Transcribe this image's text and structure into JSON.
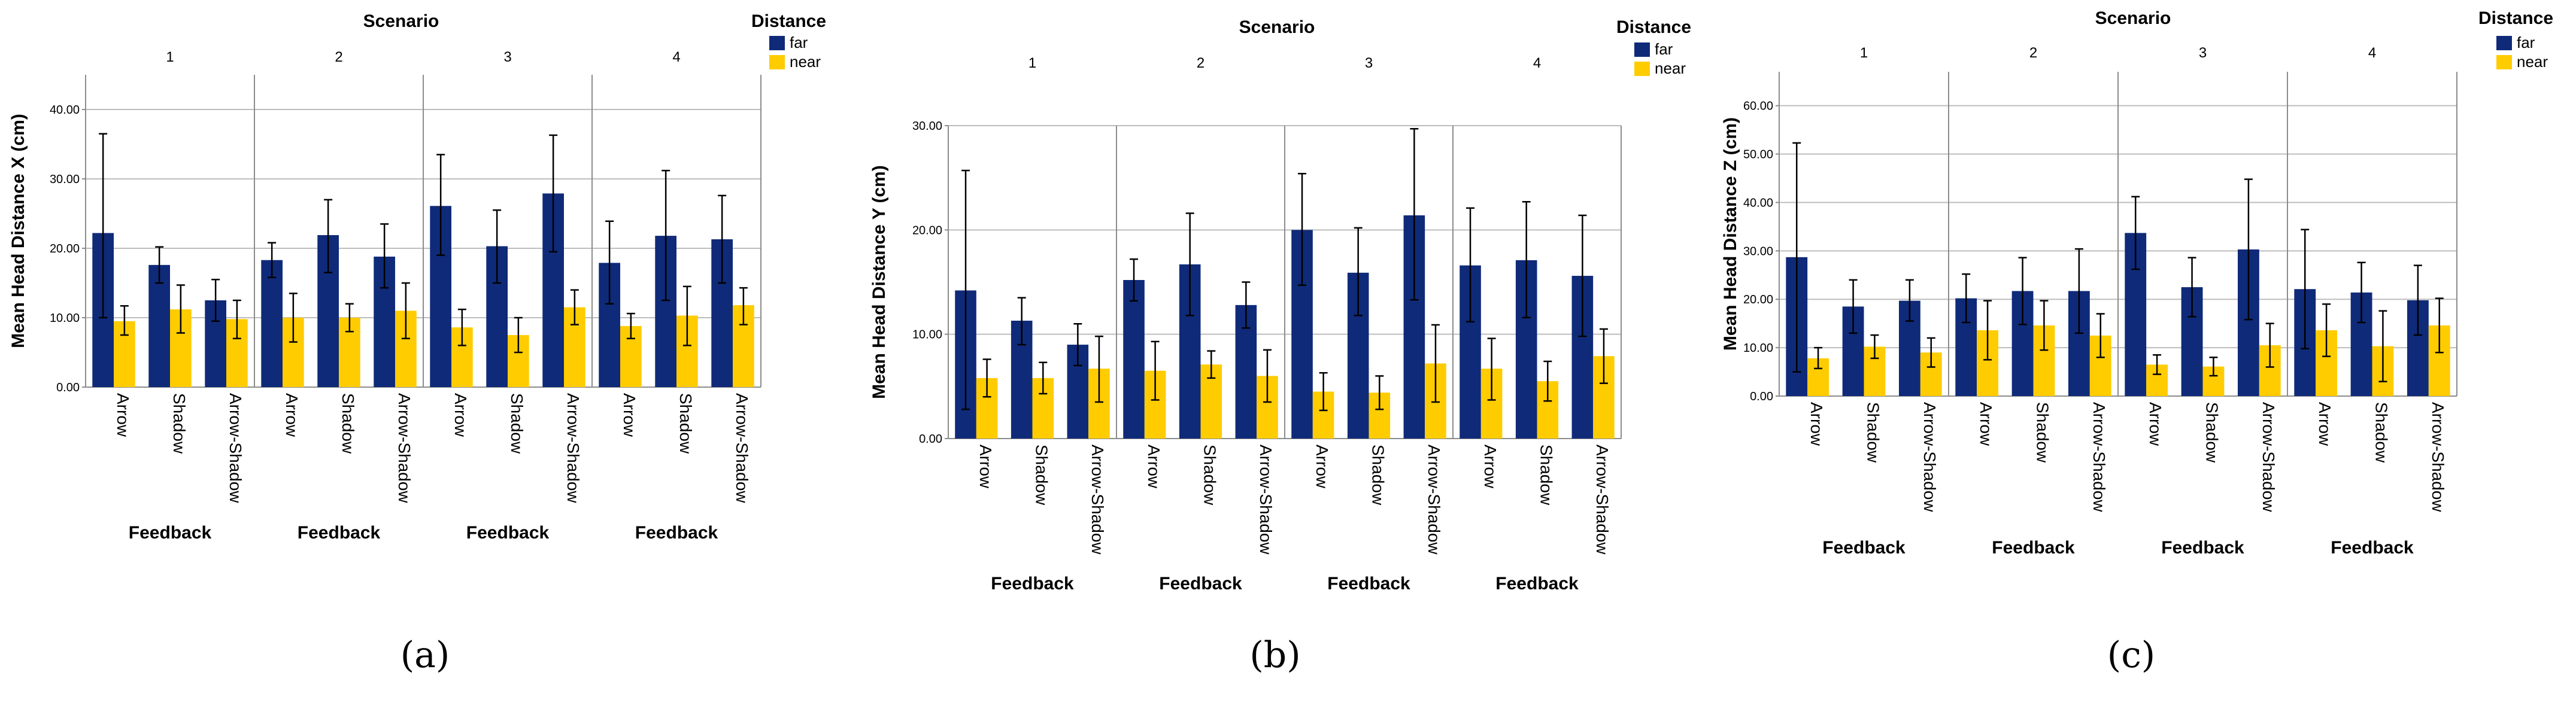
{
  "figure": {
    "captions": [
      "(a)",
      "(b)",
      "(c)"
    ]
  },
  "charts": [
    {
      "type": "bar",
      "title": "Scenario",
      "ylabel": "Mean Head Distance X (cm)",
      "xlabel": "Feedback",
      "legend_title": "Distance",
      "legend": [
        "far",
        "near"
      ],
      "ylim": [
        0,
        45
      ],
      "yticks": [
        "0.00",
        "10.00",
        "20.00",
        "30.00",
        "40.00"
      ],
      "ytick_values": [
        0,
        10,
        20,
        30,
        40
      ],
      "panels": [
        {
          "scenario": "1",
          "far": [
            22.2,
            17.6,
            12.5
          ],
          "far_err": [
            [
              10.0,
              36.5
            ],
            [
              15.0,
              20.2
            ],
            [
              9.5,
              15.5
            ]
          ],
          "near": [
            9.5,
            11.2,
            9.8
          ],
          "near_err": [
            [
              7.5,
              11.7
            ],
            [
              7.8,
              14.7
            ],
            [
              7.0,
              12.5
            ]
          ]
        },
        {
          "scenario": "2",
          "far": [
            18.3,
            21.9,
            18.8
          ],
          "far_err": [
            [
              15.8,
              20.8
            ],
            [
              16.5,
              27.0
            ],
            [
              14.3,
              23.5
            ]
          ],
          "near": [
            10.0,
            10.0,
            11.0
          ],
          "near_err": [
            [
              6.5,
              13.5
            ],
            [
              8.0,
              12.0
            ],
            [
              7.0,
              15.0
            ]
          ]
        },
        {
          "scenario": "3",
          "far": [
            26.1,
            20.3,
            27.9
          ],
          "far_err": [
            [
              19.0,
              33.5
            ],
            [
              15.0,
              25.5
            ],
            [
              19.5,
              36.3
            ]
          ],
          "near": [
            8.6,
            7.5,
            11.5
          ],
          "near_err": [
            [
              6.0,
              11.2
            ],
            [
              5.0,
              10.0
            ],
            [
              9.0,
              14.0
            ]
          ]
        },
        {
          "scenario": "4",
          "far": [
            17.9,
            21.8,
            21.3
          ],
          "far_err": [
            [
              12.0,
              23.9
            ],
            [
              12.5,
              31.2
            ],
            [
              15.0,
              27.6
            ]
          ],
          "near": [
            8.8,
            10.3,
            11.8
          ],
          "near_err": [
            [
              7.0,
              10.6
            ],
            [
              6.0,
              14.5
            ],
            [
              9.0,
              14.3
            ]
          ]
        }
      ],
      "categories": [
        "Arrow",
        "Shadow",
        "Arrow-Shadow"
      ]
    },
    {
      "type": "bar",
      "title": "Scenario",
      "ylabel": "Mean Head Distance Y (cm)",
      "xlabel": "Feedback",
      "legend_title": "Distance",
      "legend": [
        "far",
        "near"
      ],
      "ylim": [
        0,
        30
      ],
      "yticks": [
        "0.00",
        "10.00",
        "20.00",
        "30.00"
      ],
      "ytick_values": [
        0,
        10,
        20,
        30
      ],
      "panels": [
        {
          "scenario": "1",
          "far": [
            14.2,
            11.3,
            9.0
          ],
          "far_err": [
            [
              2.8,
              25.7
            ],
            [
              9.0,
              13.5
            ],
            [
              7.0,
              11.0
            ]
          ],
          "near": [
            5.8,
            5.8,
            6.7
          ],
          "near_err": [
            [
              4.0,
              7.6
            ],
            [
              4.3,
              7.3
            ],
            [
              3.5,
              9.8
            ]
          ]
        },
        {
          "scenario": "2",
          "far": [
            15.2,
            16.7,
            12.8
          ],
          "far_err": [
            [
              13.2,
              17.2
            ],
            [
              11.8,
              21.6
            ],
            [
              10.6,
              15.0
            ]
          ],
          "near": [
            6.5,
            7.1,
            6.0
          ],
          "near_err": [
            [
              3.7,
              9.3
            ],
            [
              5.8,
              8.4
            ],
            [
              3.5,
              8.5
            ]
          ]
        },
        {
          "scenario": "3",
          "far": [
            20.0,
            15.9,
            21.4
          ],
          "far_err": [
            [
              14.7,
              25.4
            ],
            [
              11.8,
              20.2
            ],
            [
              13.3,
              29.7
            ]
          ],
          "near": [
            4.5,
            4.4,
            7.2
          ],
          "near_err": [
            [
              2.7,
              6.3
            ],
            [
              2.8,
              6.0
            ],
            [
              3.5,
              10.9
            ]
          ]
        },
        {
          "scenario": "4",
          "far": [
            16.6,
            17.1,
            15.6
          ],
          "far_err": [
            [
              11.2,
              22.1
            ],
            [
              11.6,
              22.7
            ],
            [
              9.8,
              21.4
            ]
          ],
          "near": [
            6.7,
            5.5,
            7.9
          ],
          "near_err": [
            [
              3.7,
              9.6
            ],
            [
              3.6,
              7.4
            ],
            [
              5.3,
              10.5
            ]
          ]
        }
      ],
      "categories": [
        "Arrow",
        "Shadow",
        "Arrow-Shadow"
      ]
    },
    {
      "type": "bar",
      "title": "Scenario",
      "ylabel": "Mean Head Distance Z (cm)",
      "xlabel": "Feedback",
      "legend_title": "Distance",
      "legend": [
        "far",
        "near"
      ],
      "ylim": [
        0,
        67
      ],
      "yticks": [
        "0.00",
        "10.00",
        "20.00",
        "30.00",
        "40.00",
        "50.00",
        "60.00"
      ],
      "ytick_values": [
        0,
        10,
        20,
        30,
        40,
        50,
        60
      ],
      "panels": [
        {
          "scenario": "1",
          "far": [
            28.7,
            18.5,
            19.7
          ],
          "far_err": [
            [
              5.0,
              52.3
            ],
            [
              13.0,
              24.0
            ],
            [
              15.5,
              24.0
            ]
          ],
          "near": [
            7.8,
            10.2,
            9.0
          ],
          "near_err": [
            [
              5.7,
              10.0
            ],
            [
              7.8,
              12.6
            ],
            [
              6.0,
              12.0
            ]
          ]
        },
        {
          "scenario": "2",
          "far": [
            20.2,
            21.7,
            21.7
          ],
          "far_err": [
            [
              15.2,
              25.2
            ],
            [
              14.8,
              28.6
            ],
            [
              13.0,
              30.4
            ]
          ],
          "near": [
            13.6,
            14.6,
            12.5
          ],
          "near_err": [
            [
              7.5,
              19.7
            ],
            [
              9.5,
              19.7
            ],
            [
              8.0,
              17.0
            ]
          ]
        },
        {
          "scenario": "3",
          "far": [
            33.7,
            22.5,
            30.3
          ],
          "far_err": [
            [
              26.2,
              41.2
            ],
            [
              16.4,
              28.6
            ],
            [
              15.8,
              44.8
            ]
          ],
          "near": [
            6.5,
            6.1,
            10.5
          ],
          "near_err": [
            [
              4.5,
              8.5
            ],
            [
              4.2,
              8.0
            ],
            [
              6.0,
              15.0
            ]
          ]
        },
        {
          "scenario": "4",
          "far": [
            22.1,
            21.4,
            19.8
          ],
          "far_err": [
            [
              9.8,
              34.4
            ],
            [
              15.2,
              27.6
            ],
            [
              12.6,
              27.0
            ]
          ],
          "near": [
            13.6,
            10.3,
            14.6
          ],
          "near_err": [
            [
              8.2,
              19.0
            ],
            [
              3.0,
              17.6
            ],
            [
              9.0,
              20.2
            ]
          ]
        }
      ],
      "categories": [
        "Arrow",
        "Shadow",
        "Arrow-Shadow"
      ]
    }
  ],
  "chart_data": [
    {
      "type": "bar",
      "title": "Scenario",
      "ylabel": "Mean Head Distance X (cm)",
      "xlabel": "Feedback",
      "legend": [
        "far",
        "near"
      ],
      "categories": [
        "Arrow",
        "Shadow",
        "Arrow-Shadow"
      ],
      "ylim": [
        0,
        45
      ]
    },
    {
      "type": "bar",
      "title": "Scenario",
      "ylabel": "Mean Head Distance Y (cm)",
      "xlabel": "Feedback",
      "legend": [
        "far",
        "near"
      ],
      "categories": [
        "Arrow",
        "Shadow",
        "Arrow-Shadow"
      ],
      "ylim": [
        0,
        30
      ]
    },
    {
      "type": "bar",
      "title": "Scenario",
      "ylabel": "Mean Head Distance Z (cm)",
      "xlabel": "Feedback",
      "legend": [
        "far",
        "near"
      ],
      "categories": [
        "Arrow",
        "Shadow",
        "Arrow-Shadow"
      ],
      "ylim": [
        0,
        67
      ]
    }
  ],
  "colors": {
    "far": "#0f2a78",
    "near": "#ffcc00",
    "grid": "#bdbdbd",
    "axis": "#8c8c8c",
    "errorbar": "#000000"
  }
}
